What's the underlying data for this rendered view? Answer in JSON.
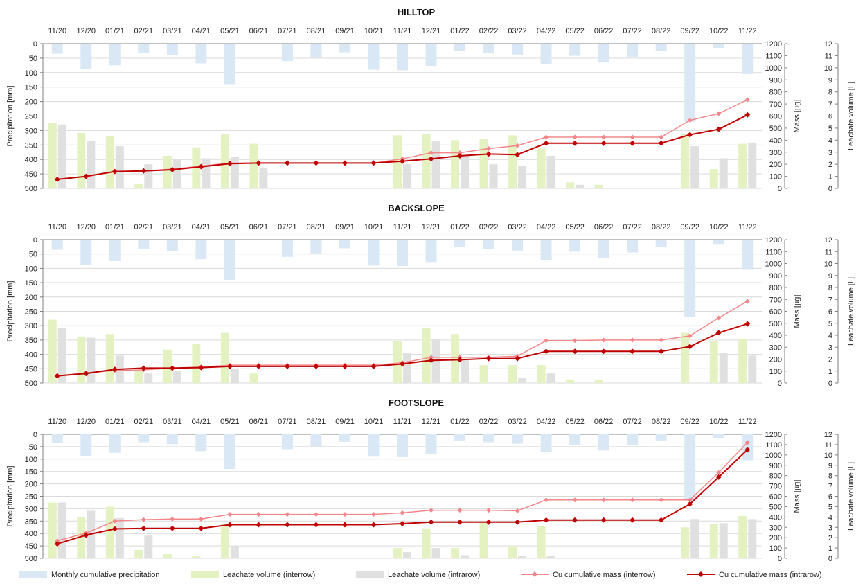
{
  "x_labels": [
    "11/20",
    "12/20",
    "01/21",
    "02/21",
    "03/21",
    "04/21",
    "05/21",
    "06/21",
    "07/21",
    "08/21",
    "09/21",
    "10/21",
    "11/21",
    "12/21",
    "01/22",
    "02/22",
    "03/22",
    "04/22",
    "05/22",
    "06/22",
    "07/22",
    "08/22",
    "09/22",
    "10/22",
    "11/22"
  ],
  "axis_titles": {
    "left": "Precipitation [mm]",
    "mass": "Mass [µg]",
    "volume": "Leachate volume [L]"
  },
  "left_ticks": [
    "0",
    "50",
    "100",
    "150",
    "200",
    "250",
    "300",
    "350",
    "400",
    "450",
    "500"
  ],
  "mass_ticks": [
    "0",
    "100",
    "200",
    "300",
    "400",
    "500",
    "600",
    "700",
    "800",
    "900",
    "1000",
    "1100",
    "1200"
  ],
  "volume_ticks": [
    "0",
    "1",
    "2",
    "3",
    "4",
    "5",
    "6",
    "7",
    "8",
    "9",
    "10",
    "11",
    "12"
  ],
  "legend": [
    {
      "label": "Monthly cumulative precipitation",
      "kind": "bar",
      "color": "#dae8f6"
    },
    {
      "label": "Leachate volume (interrow)",
      "kind": "bar",
      "color": "#e4f2c2"
    },
    {
      "label": "Leachate volume (intrarow)",
      "kind": "bar",
      "color": "#e0e0e0"
    },
    {
      "label": "Cu cumulative mass (interrow)",
      "kind": "line",
      "color": "#f4868a"
    },
    {
      "label": "Cu cumulative mass (intrarow)",
      "kind": "line",
      "color": "#c00000"
    }
  ],
  "chart_data": [
    {
      "type": "bar+line",
      "title": "HILLTOP",
      "categories": [
        "11/20",
        "12/20",
        "01/21",
        "02/21",
        "03/21",
        "04/21",
        "05/21",
        "06/21",
        "07/21",
        "08/21",
        "09/21",
        "10/21",
        "11/21",
        "12/21",
        "01/22",
        "02/22",
        "03/22",
        "04/22",
        "05/22",
        "06/22",
        "07/22",
        "08/22",
        "09/22",
        "10/22",
        "11/22"
      ],
      "precipitation_mm": [
        35,
        88,
        75,
        32,
        40,
        68,
        140,
        0,
        60,
        48,
        30,
        90,
        92,
        78,
        25,
        32,
        38,
        70,
        42,
        65,
        45,
        25,
        270,
        15,
        105
      ],
      "leachate_interrow_L": [
        5.4,
        4.6,
        4.3,
        0.4,
        2.7,
        3.4,
        4.5,
        3.7,
        0,
        0,
        0,
        0,
        4.4,
        4.5,
        4.0,
        4.1,
        4.4,
        3.3,
        0.5,
        0.3,
        0,
        0,
        4.5,
        1.6,
        3.7
      ],
      "leachate_intrarow_L": [
        5.3,
        3.9,
        3.5,
        2.0,
        2.4,
        2.5,
        2.6,
        1.7,
        0,
        0,
        0,
        0,
        2.0,
        3.9,
        2.8,
        2.0,
        1.9,
        2.7,
        0.3,
        0,
        0,
        0,
        3.5,
        2.5,
        3.8
      ],
      "cu_mass_interrow_ug": [
        75,
        100,
        140,
        145,
        160,
        185,
        210,
        210,
        210,
        210,
        210,
        210,
        245,
        295,
        295,
        330,
        355,
        425,
        425,
        425,
        425,
        425,
        565,
        620,
        735
      ],
      "cu_mass_intrarow_ug": [
        75,
        100,
        140,
        145,
        155,
        180,
        205,
        210,
        210,
        210,
        210,
        210,
        225,
        245,
        270,
        285,
        280,
        375,
        375,
        375,
        375,
        375,
        445,
        490,
        610
      ],
      "ylim_precip_mm": [
        500,
        0
      ],
      "ylim_mass_ug": [
        0,
        1200
      ],
      "ylim_volume_L": [
        0,
        12
      ]
    },
    {
      "type": "bar+line",
      "title": "BACKSLOPE",
      "categories": [
        "11/20",
        "12/20",
        "01/21",
        "02/21",
        "03/21",
        "04/21",
        "05/21",
        "06/21",
        "07/21",
        "08/21",
        "09/21",
        "10/21",
        "11/21",
        "12/21",
        "01/22",
        "02/22",
        "03/22",
        "04/22",
        "05/22",
        "06/22",
        "07/22",
        "08/22",
        "09/22",
        "10/22",
        "11/22"
      ],
      "precipitation_mm": [
        35,
        88,
        75,
        32,
        40,
        68,
        140,
        0,
        60,
        48,
        30,
        90,
        92,
        78,
        25,
        32,
        38,
        70,
        42,
        65,
        45,
        25,
        270,
        15,
        105
      ],
      "leachate_interrow_L": [
        5.3,
        3.9,
        4.1,
        1.0,
        2.8,
        3.3,
        4.2,
        0.8,
        0,
        0,
        0,
        0,
        3.5,
        4.6,
        4.1,
        1.5,
        1.5,
        1.5,
        0.3,
        0.3,
        0,
        0,
        4.2,
        3.5,
        3.7
      ],
      "leachate_intrarow_L": [
        4.6,
        3.8,
        2.3,
        0.8,
        1.0,
        0,
        1.2,
        0,
        0,
        0,
        0,
        0,
        2.5,
        3.7,
        1.9,
        0,
        0.4,
        0.8,
        0,
        0,
        0,
        0,
        0,
        2.5,
        2.3
      ],
      "cu_mass_interrow_ug": [
        60,
        85,
        105,
        110,
        125,
        135,
        150,
        150,
        150,
        150,
        150,
        150,
        170,
        215,
        215,
        215,
        225,
        355,
        355,
        360,
        360,
        360,
        395,
        545,
        685
      ],
      "cu_mass_intrarow_ug": [
        60,
        80,
        115,
        125,
        125,
        130,
        140,
        140,
        140,
        140,
        140,
        140,
        160,
        190,
        195,
        205,
        205,
        265,
        265,
        265,
        265,
        265,
        305,
        420,
        495
      ],
      "ylim_precip_mm": [
        500,
        0
      ],
      "ylim_mass_ug": [
        0,
        1200
      ],
      "ylim_volume_L": [
        0,
        12
      ]
    },
    {
      "type": "bar+line",
      "title": "FOOTSLOPE",
      "categories": [
        "11/20",
        "12/20",
        "01/21",
        "02/21",
        "03/21",
        "04/21",
        "05/21",
        "06/21",
        "07/21",
        "08/21",
        "09/21",
        "10/21",
        "11/21",
        "12/21",
        "01/22",
        "02/22",
        "03/22",
        "04/22",
        "05/22",
        "06/22",
        "07/22",
        "08/22",
        "09/22",
        "10/22",
        "11/22"
      ],
      "precipitation_mm": [
        35,
        88,
        75,
        32,
        40,
        68,
        140,
        0,
        60,
        48,
        30,
        90,
        92,
        78,
        25,
        32,
        38,
        70,
        42,
        65,
        45,
        25,
        270,
        15,
        105
      ],
      "leachate_interrow_L": [
        5.4,
        4.0,
        5.0,
        0.8,
        0.4,
        0.2,
        3.3,
        0,
        0,
        0,
        0,
        0,
        1.0,
        2.9,
        1.0,
        3.5,
        1.2,
        3.1,
        0,
        0,
        0,
        0,
        3.0,
        3.3,
        4.1
      ],
      "leachate_intrarow_L": [
        5.4,
        4.6,
        3.9,
        2.2,
        0,
        0,
        1.2,
        0,
        0,
        0,
        0,
        0,
        0.6,
        1.0,
        0.3,
        0,
        0.2,
        0.2,
        0,
        0,
        0,
        0,
        3.8,
        3.4,
        3.8
      ],
      "cu_mass_interrow_ug": [
        170,
        245,
        360,
        375,
        380,
        380,
        425,
        425,
        425,
        425,
        425,
        425,
        440,
        465,
        465,
        465,
        460,
        565,
        565,
        565,
        565,
        565,
        565,
        830,
        1120
      ],
      "cu_mass_intrarow_ug": [
        140,
        225,
        285,
        290,
        290,
        290,
        325,
        325,
        325,
        325,
        325,
        325,
        335,
        350,
        350,
        350,
        350,
        370,
        370,
        370,
        370,
        370,
        525,
        785,
        1050
      ],
      "ylim_precip_mm": [
        500,
        0
      ],
      "ylim_mass_ug": [
        0,
        1200
      ],
      "ylim_volume_L": [
        0,
        12
      ]
    }
  ]
}
